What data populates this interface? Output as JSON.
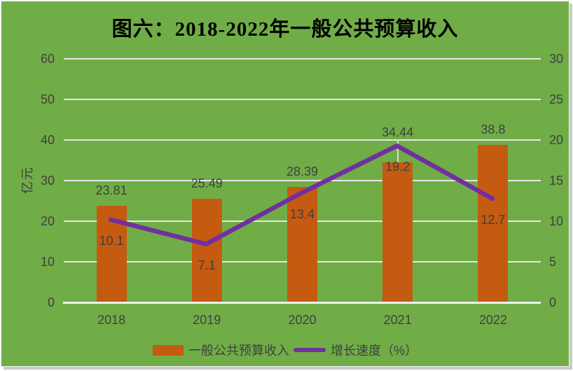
{
  "chart_data": {
    "type": "bar+line",
    "title": "图六：2018-2022年一般公共预算收入",
    "categories": [
      "2018",
      "2019",
      "2020",
      "2021",
      "2022"
    ],
    "series": [
      {
        "name": "一般公共预算收入",
        "type": "bar",
        "axis": "left",
        "color": "#C55A11",
        "values": [
          23.81,
          25.49,
          28.39,
          34.44,
          38.8
        ]
      },
      {
        "name": "增长速度（%）",
        "type": "line",
        "axis": "right",
        "color": "#7030A0",
        "values": [
          10.1,
          7.1,
          13.4,
          19.2,
          12.7
        ]
      }
    ],
    "left_axis": {
      "label": "亿元",
      "min": 0,
      "max": 60,
      "step": 10,
      "ticks": [
        0,
        10,
        20,
        30,
        40,
        50,
        60
      ]
    },
    "right_axis": {
      "label": "%",
      "min": 0,
      "max": 30,
      "step": 5,
      "ticks": [
        0,
        5,
        10,
        15,
        20,
        25,
        30
      ]
    },
    "grid": true,
    "legend_position": "bottom",
    "colors": {
      "background": "#70AD47",
      "gridline": "#E7E7E7",
      "axis_line": "#F1F1F1",
      "tick_text": "#404040",
      "label_text": "#3F3F3F",
      "title_text": "#000000",
      "leader_line": "#D9D9D9"
    }
  }
}
